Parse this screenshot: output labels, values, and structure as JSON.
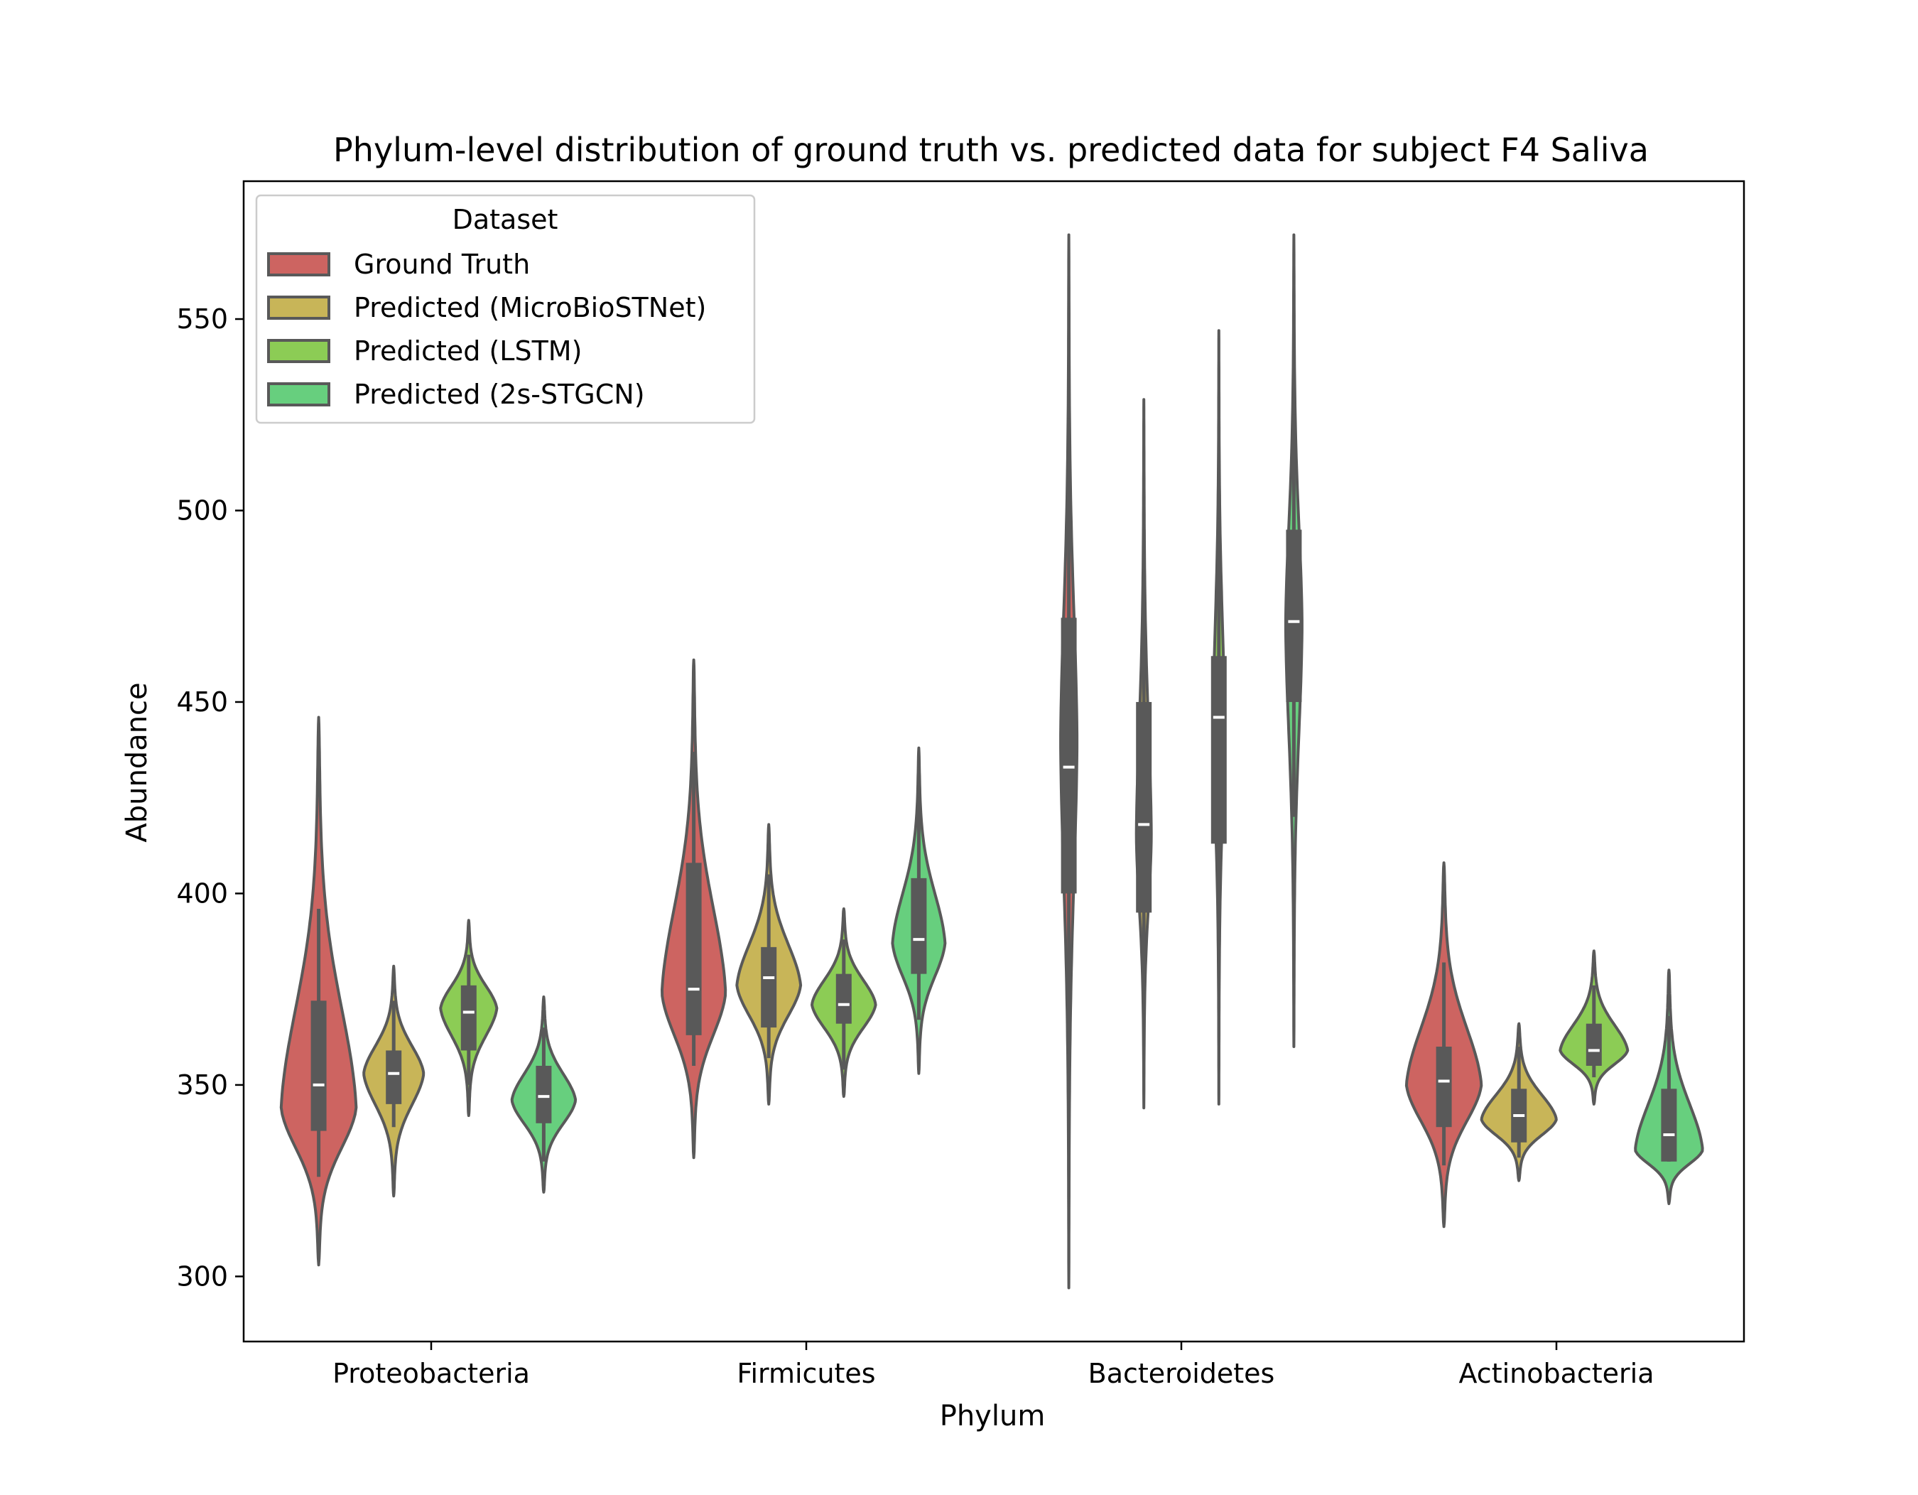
{
  "chart_data": {
    "type": "violin",
    "title": "Phylum-level distribution of ground truth vs. predicted data for subject F4 Saliva",
    "xlabel": "Phylum",
    "ylabel": "Abundance",
    "ylim": [
      283,
      586
    ],
    "yticks": [
      300,
      350,
      400,
      450,
      500,
      550
    ],
    "categories": [
      "Proteobacteria",
      "Firmicutes",
      "Bacteroidetes",
      "Actinobacteria"
    ],
    "legend": {
      "title": "Dataset",
      "position": "upper-left"
    },
    "grid": false,
    "series": [
      {
        "name": "Ground Truth",
        "color": "#cd6461",
        "violins": [
          {
            "min": 303,
            "max": 446,
            "q1": 338,
            "median": 350,
            "q3": 372,
            "wlo": 326,
            "whi": 396,
            "mode": 344,
            "width": 1.0
          },
          {
            "min": 331,
            "max": 461,
            "q1": 363,
            "median": 375,
            "q3": 408,
            "wlo": 355,
            "whi": 437,
            "mode": 374,
            "width": 0.85
          },
          {
            "min": 297,
            "max": 572,
            "q1": 400,
            "median": 433,
            "q3": 472,
            "wlo": 346,
            "whi": 524,
            "mode": 440,
            "width": 0.22
          },
          {
            "min": 313,
            "max": 408,
            "q1": 339,
            "median": 351,
            "q3": 360,
            "wlo": 329,
            "whi": 382,
            "mode": 350,
            "width": 1.0
          }
        ]
      },
      {
        "name": "Predicted (MicroBioSTNet)",
        "color": "#c8b558",
        "violins": [
          {
            "min": 321,
            "max": 381,
            "q1": 345,
            "median": 353,
            "q3": 359,
            "wlo": 339,
            "whi": 372,
            "mode": 353,
            "width": 0.8
          },
          {
            "min": 345,
            "max": 418,
            "q1": 365,
            "median": 378,
            "q3": 386,
            "wlo": 357,
            "whi": 405,
            "mode": 376,
            "width": 0.85
          },
          {
            "min": 344,
            "max": 529,
            "q1": 395,
            "median": 418,
            "q3": 450,
            "wlo": 378,
            "whi": 495,
            "mode": 415,
            "width": 0.2
          },
          {
            "min": 325,
            "max": 366,
            "q1": 335,
            "median": 342,
            "q3": 349,
            "wlo": 331,
            "whi": 360,
            "mode": 341,
            "width": 1.0
          }
        ]
      },
      {
        "name": "Predicted (LSTM)",
        "color": "#8ccc55",
        "violins": [
          {
            "min": 342,
            "max": 393,
            "q1": 359,
            "median": 369,
            "q3": 376,
            "wlo": 350,
            "whi": 384,
            "mode": 370,
            "width": 0.75
          },
          {
            "min": 347,
            "max": 396,
            "q1": 366,
            "median": 371,
            "q3": 379,
            "wlo": 354,
            "whi": 388,
            "mode": 371,
            "width": 0.85
          },
          {
            "min": 345,
            "max": 547,
            "q1": 413,
            "median": 446,
            "q3": 462,
            "wlo": 382,
            "whi": 498,
            "mode": 446,
            "width": 0.15
          },
          {
            "min": 345,
            "max": 385,
            "q1": 355,
            "median": 359,
            "q3": 366,
            "wlo": 352,
            "whi": 376,
            "mode": 359,
            "width": 0.9
          }
        ]
      },
      {
        "name": "Predicted (2s-STGCN)",
        "color": "#67cf7e",
        "violins": [
          {
            "min": 322,
            "max": 373,
            "q1": 340,
            "median": 347,
            "q3": 355,
            "wlo": 330,
            "whi": 365,
            "mode": 346,
            "width": 0.85
          },
          {
            "min": 353,
            "max": 438,
            "q1": 379,
            "median": 388,
            "q3": 404,
            "wlo": 367,
            "whi": 425,
            "mode": 387,
            "width": 0.7
          },
          {
            "min": 360,
            "max": 572,
            "q1": 450,
            "median": 471,
            "q3": 495,
            "wlo": 420,
            "whi": 525,
            "mode": 470,
            "width": 0.22
          },
          {
            "min": 319,
            "max": 380,
            "q1": 330,
            "median": 337,
            "q3": 349,
            "wlo": 330,
            "whi": 368,
            "mode": 333,
            "width": 0.9
          }
        ]
      }
    ]
  }
}
